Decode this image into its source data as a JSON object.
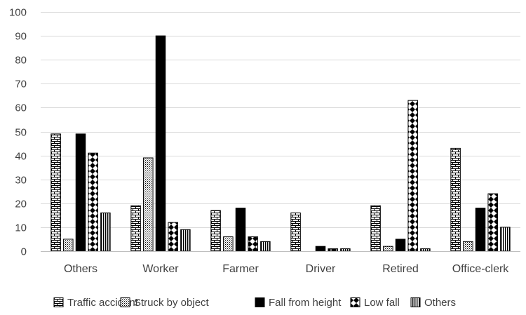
{
  "chart_data": {
    "type": "bar",
    "title": "",
    "xlabel": "",
    "ylabel": "",
    "ylim": [
      0,
      100
    ],
    "yticks": [
      0,
      10,
      20,
      30,
      40,
      50,
      60,
      70,
      80,
      90,
      100
    ],
    "grid": true,
    "legend_position": "bottom",
    "categories": [
      "Others",
      "Worker",
      "Farmer",
      "Driver",
      "Retired",
      "Office-clerk"
    ],
    "series": [
      {
        "name": "Traffic accident",
        "pattern": "brick",
        "values": [
          49,
          19,
          17,
          16,
          19,
          43
        ]
      },
      {
        "name": "Struck by object",
        "pattern": "dots",
        "values": [
          5,
          39,
          6,
          0,
          2,
          4
        ]
      },
      {
        "name": "Fall from height",
        "pattern": "solid",
        "values": [
          49,
          90,
          18,
          2,
          5,
          18
        ]
      },
      {
        "name": "Low fall",
        "pattern": "diamond",
        "values": [
          41,
          12,
          6,
          1,
          63,
          24
        ]
      },
      {
        "name": "Others",
        "pattern": "vertical",
        "values": [
          16,
          9,
          4,
          1,
          1,
          10
        ]
      }
    ],
    "colors": {
      "axis": "#bfbfbf",
      "grid": "#d9d9d9",
      "ink": "#000000",
      "text": "#404040"
    }
  }
}
